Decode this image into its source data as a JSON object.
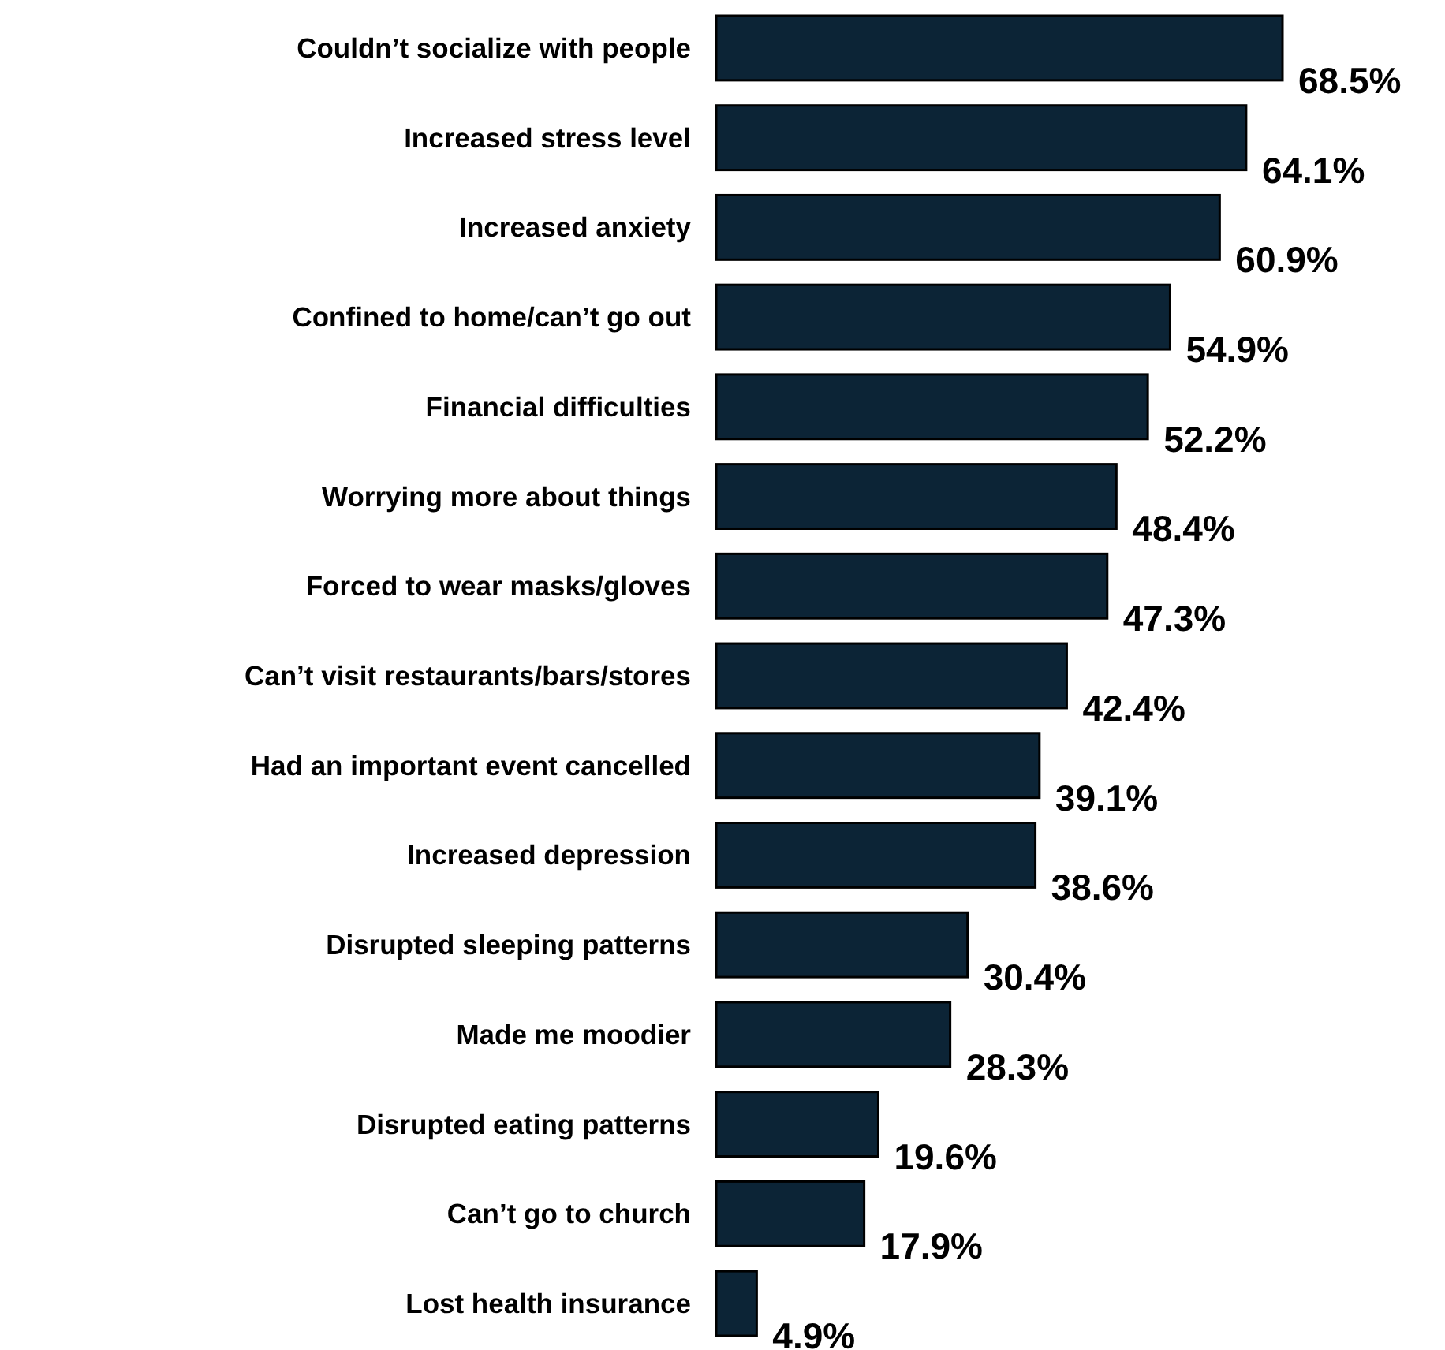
{
  "chart_data": {
    "type": "bar",
    "orientation": "horizontal",
    "categories": [
      "Couldn’t socialize with people",
      "Increased stress level",
      "Increased anxiety",
      "Confined to home/can’t go out",
      "Financial difficulties",
      "Worrying more about things",
      "Forced to wear masks/gloves",
      "Can’t visit restaurants/bars/stores",
      "Had an important event cancelled",
      "Increased depression",
      "Disrupted sleeping patterns",
      "Made me moodier",
      "Disrupted eating patterns",
      "Can’t go to church",
      "Lost health insurance"
    ],
    "values": [
      68.5,
      64.1,
      60.9,
      54.9,
      52.2,
      48.4,
      47.3,
      42.4,
      39.1,
      38.6,
      30.4,
      28.3,
      19.6,
      17.9,
      4.9
    ],
    "value_labels": [
      "68.5%",
      "64.1%",
      "60.9%",
      "54.9%",
      "52.2%",
      "48.4%",
      "47.3%",
      "42.4%",
      "39.1%",
      "38.6%",
      "30.4%",
      "28.3%",
      "19.6%",
      "17.9%",
      "4.9%"
    ],
    "color": "#0c2436"
  }
}
